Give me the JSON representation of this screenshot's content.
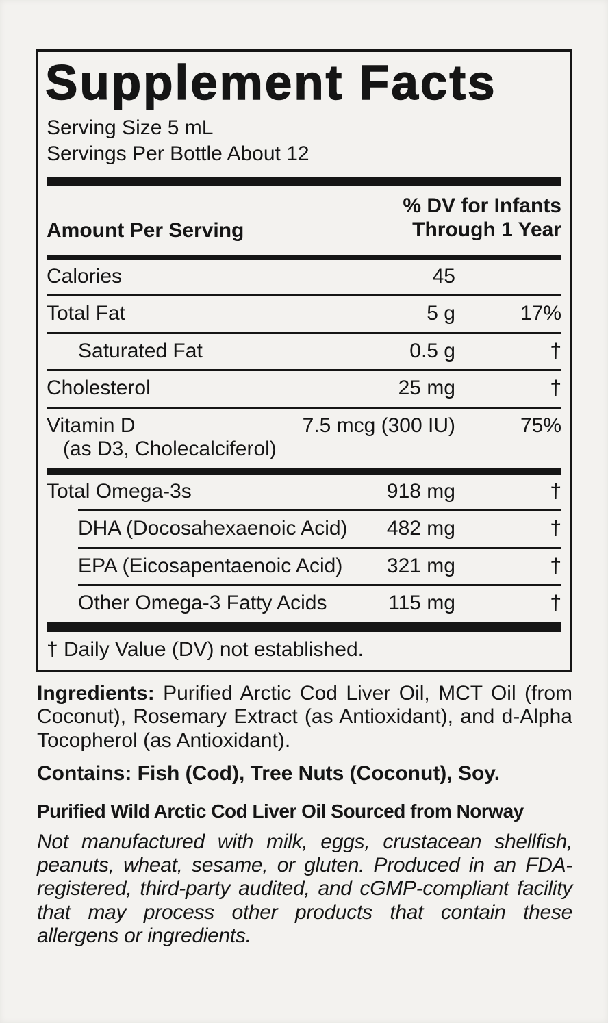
{
  "colors": {
    "page-bg": "#f3f2ef",
    "ink": "#151515"
  },
  "panel": {
    "title": "Supplement Facts",
    "serving_size": "Serving Size 5 mL",
    "servings_per_bottle": "Servings Per Bottle About 12",
    "columns": {
      "amount_header": "Amount Per Serving",
      "dv_header_line1": "% DV for Infants",
      "dv_header_line2": "Through 1 Year"
    },
    "rows": [
      {
        "name": "Calories",
        "amount": "45",
        "dv": ""
      },
      {
        "name": "Total Fat",
        "amount": "5 g",
        "dv": "17%"
      },
      {
        "name": "Saturated Fat",
        "amount": "0.5 g",
        "dv": "†"
      },
      {
        "name": "Cholesterol",
        "amount": "25 mg",
        "dv": "†"
      },
      {
        "name": "Vitamin D",
        "sub": "(as D3, Cholecalciferol)",
        "amount": "7.5 mcg (300 IU)",
        "dv": "75%"
      },
      {
        "name": "Total Omega-3s",
        "amount": "918 mg",
        "dv": "†"
      },
      {
        "name": "DHA (Docosahexaenoic Acid)",
        "amount": "482 mg",
        "dv": "†"
      },
      {
        "name": "EPA (Eicosapentaenoic Acid)",
        "amount": "321 mg",
        "dv": "†"
      },
      {
        "name": "Other Omega-3 Fatty Acids",
        "amount": "115 mg",
        "dv": "†"
      }
    ],
    "footnote": "† Daily Value (DV) not established."
  },
  "ingredients": {
    "label": "Ingredients:",
    "text": "Purified Arctic Cod Liver Oil, MCT Oil (from Coconut), Rosemary Extract (as Antioxidant), and d-Alpha Tocopherol (as Antioxidant)."
  },
  "contains": "Contains: Fish (Cod), Tree Nuts (Coconut), Soy.",
  "sourced_heading": "Purified Wild Arctic Cod Liver Oil Sourced from Norway",
  "allergen_note": "Not manufactured with milk, eggs, crustacean shellfish, peanuts, wheat, sesame, or gluten. Produced in an FDA-registered, third-party audited, and cGMP-compliant facility that may process other products that contain these allergens or ingredients."
}
